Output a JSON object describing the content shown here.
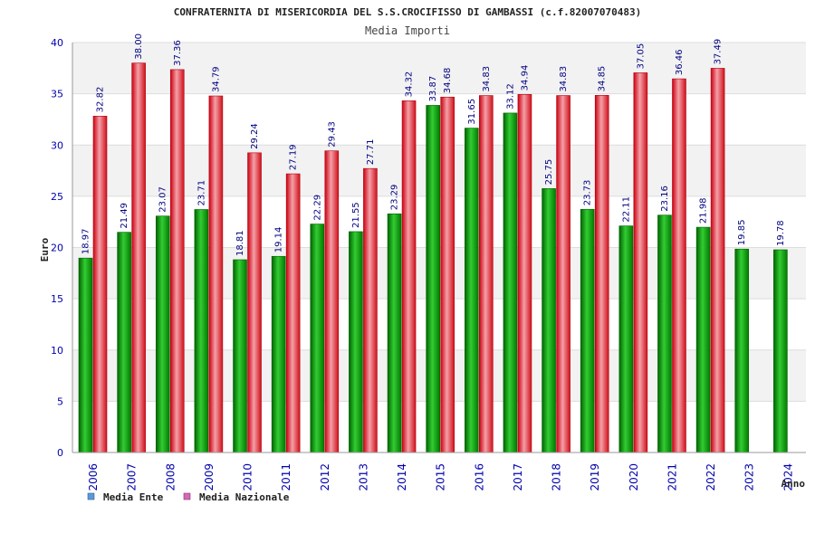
{
  "chart_data": {
    "type": "bar",
    "title": "CONFRATERNITA DI MISERICORDIA DEL S.S.CROCIFISSO DI GAMBASSI (c.f.82007070483)",
    "subtitle": "Media Importi",
    "xlabel": "Anno",
    "ylabel": "Euro",
    "ylim": [
      0,
      40
    ],
    "yticks": [
      0,
      5,
      10,
      15,
      20,
      25,
      30,
      35,
      40
    ],
    "categories": [
      "2006",
      "2007",
      "2008",
      "2009",
      "2010",
      "2011",
      "2012",
      "2013",
      "2014",
      "2015",
      "2016",
      "2017",
      "2018",
      "2019",
      "2020",
      "2021",
      "2022",
      "2023",
      "2024"
    ],
    "series": [
      {
        "name": "Media Ente",
        "color": "#00b000",
        "values": [
          18.97,
          21.49,
          23.07,
          23.71,
          18.81,
          19.14,
          22.29,
          21.55,
          23.29,
          33.87,
          31.65,
          33.12,
          25.75,
          23.73,
          22.11,
          23.16,
          21.98,
          19.85,
          19.78
        ],
        "labels": [
          "18.97",
          "21.49",
          "23.07",
          "23.71",
          "18.81",
          "19.14",
          "22.29",
          "21.55",
          "23.29",
          "33.87",
          "31.65",
          "33.12",
          "25.75",
          "23.73",
          "22.11",
          "23.16",
          "21.98",
          "19.85",
          "19.78"
        ]
      },
      {
        "name": "Media Nazionale",
        "color": "#e8141e",
        "values": [
          32.82,
          38.0,
          37.36,
          34.79,
          29.24,
          27.19,
          29.43,
          27.71,
          34.32,
          34.68,
          34.83,
          34.94,
          34.83,
          34.85,
          37.05,
          36.46,
          37.49,
          null,
          null
        ],
        "labels": [
          "32.82",
          "38.00",
          "37.36",
          "34.79",
          "29.24",
          "27.19",
          "29.43",
          "27.71",
          "34.32",
          "34.68",
          "34.83",
          "34.94",
          "34.83",
          "34.85",
          "37.05",
          "36.46",
          "37.49",
          "",
          ""
        ]
      }
    ],
    "legend": [
      {
        "label": "Media Ente",
        "color": "#5b9bd5"
      },
      {
        "label": "Media Nazionale",
        "color": "#d46ab4"
      }
    ],
    "legend_position": "bottom-left",
    "grid": true,
    "band_color": "#f2f2f2"
  }
}
